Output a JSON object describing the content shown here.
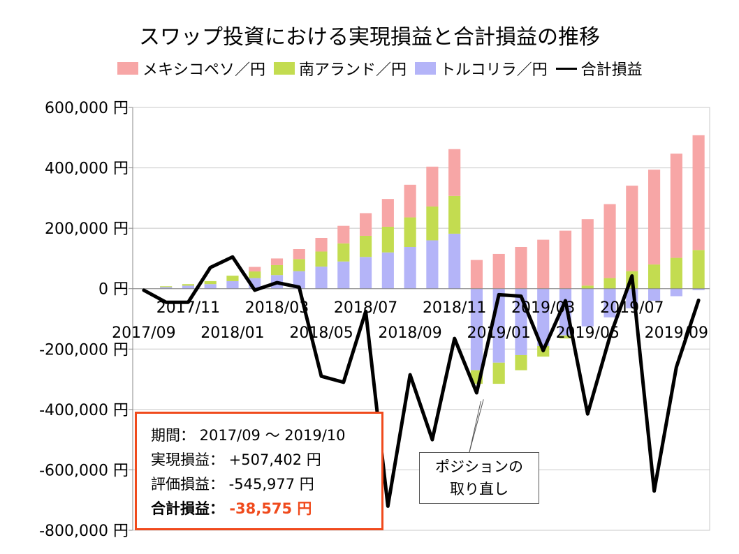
{
  "chart_data": {
    "type": "bar",
    "title": "スワップ投資における実現損益と合計損益の推移",
    "legend_placement": "top",
    "stacked": true,
    "ylim": [
      -800000,
      600000
    ],
    "y_ticks": [
      "600,000 円",
      "400,000 円",
      "200,000 円",
      "0 円",
      "-200,000 円",
      "-400,000 円",
      "-600,000 円",
      "-800,000 円"
    ],
    "x_labels_row1": [
      "2017/11",
      "2018/03",
      "2018/07",
      "2018/11",
      "2019/03",
      "2019/07"
    ],
    "x_labels_row2": [
      "2017/09",
      "2018/01",
      "2018/05",
      "2018/09",
      "2019/01",
      "2019/05",
      "2019/09"
    ],
    "categories": [
      "2017/09",
      "2017/10",
      "2017/11",
      "2017/12",
      "2018/01",
      "2018/02",
      "2018/03",
      "2018/04",
      "2018/05",
      "2018/06",
      "2018/07",
      "2018/08",
      "2018/09",
      "2018/10",
      "2018/11",
      "2018/12",
      "2019/01",
      "2019/02",
      "2019/03",
      "2019/04",
      "2019/05",
      "2019/06",
      "2019/07",
      "2019/08",
      "2019/09",
      "2019/10"
    ],
    "series": [
      {
        "name": "トルコリラ／円",
        "color": "#b4b4f8",
        "values": [
          0,
          5000,
          10000,
          15000,
          25000,
          35000,
          45000,
          58000,
          73000,
          90000,
          105000,
          120000,
          138000,
          160000,
          182000,
          -270000,
          -245000,
          -220000,
          -190000,
          -155000,
          -125000,
          -95000,
          -65000,
          -40000,
          -25000,
          -5000
        ]
      },
      {
        "name": "南アランド／円",
        "color": "#c3dc50",
        "values": [
          0,
          3000,
          5000,
          10000,
          18000,
          22000,
          33000,
          40000,
          50000,
          60000,
          70000,
          85000,
          98000,
          112000,
          125000,
          -45000,
          -70000,
          -50000,
          -35000,
          -10000,
          10000,
          35000,
          58000,
          80000,
          102000,
          128000
        ]
      },
      {
        "name": "メキシコペソ／円",
        "color": "#f7a6a6",
        "values": [
          0,
          0,
          0,
          0,
          0,
          15000,
          22000,
          33000,
          45000,
          58000,
          75000,
          92000,
          108000,
          132000,
          155000,
          95000,
          115000,
          138000,
          162000,
          192000,
          220000,
          245000,
          283000,
          314000,
          345000,
          380000
        ]
      }
    ],
    "line": {
      "name": "合計損益",
      "color": "#000000",
      "values": [
        -5000,
        -45000,
        -45000,
        70000,
        105000,
        -5000,
        20000,
        5000,
        -290000,
        -310000,
        -75000,
        -720000,
        -285000,
        -500000,
        -165000,
        -345000,
        -20000,
        -25000,
        -205000,
        -40000,
        -415000,
        -160000,
        42000,
        -670000,
        -260000,
        -38575
      ]
    },
    "infobox": {
      "period": "期間： 2017/09 ～ 2019/10",
      "realized": "実現損益： +507,402 円",
      "unrealized": "評価損益： -545,977 円",
      "total_label": "合計損益：",
      "total_value": "-38,575 円"
    },
    "annotation_line1": "ポジションの",
    "annotation_line2": "取り直し"
  }
}
